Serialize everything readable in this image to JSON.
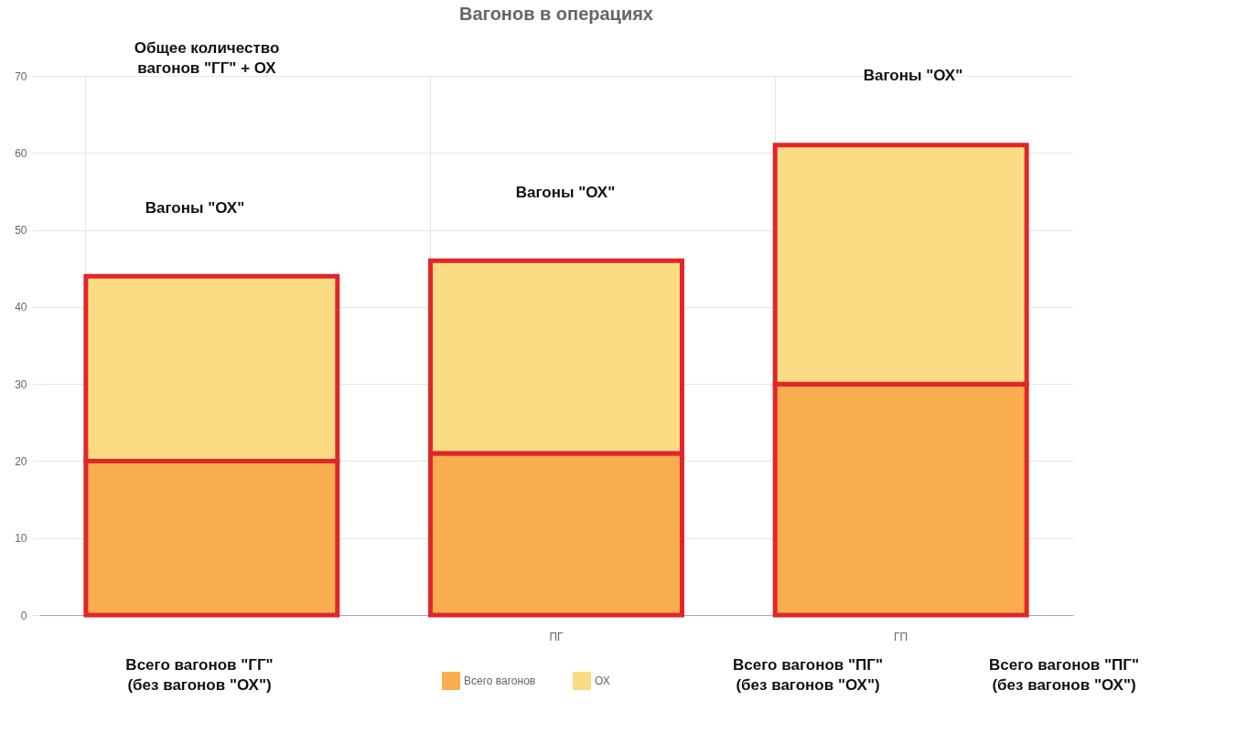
{
  "chart_data": {
    "type": "bar",
    "title": "Вагонов в операциях",
    "categories": [
      null,
      "ПГ",
      "ГП"
    ],
    "stacked": true,
    "series": [
      {
        "name": "Всего вагонов",
        "color": "#f9ad4e",
        "values": [
          20,
          21,
          30
        ]
      },
      {
        "name": "ОХ",
        "color": "#fbdc85",
        "values": [
          24,
          25,
          31
        ]
      }
    ],
    "ylim": [
      0,
      70
    ],
    "yticks": [
      0,
      10,
      20,
      30,
      40,
      50,
      60,
      70
    ],
    "grid": true,
    "legend": "bottom",
    "annotations": [
      "Общее количество\nвагонов \"ГГ\" + ОХ",
      "Вагоны \"ОХ\"",
      "Вагоны \"ОХ\"",
      "Вагоны \"ОХ\"",
      "Всего вагонов \"ГГ\"\n(без вагонов \"ОХ\")",
      "Всего вагонов \"ПГ\"\n(без вагонов \"ОХ\")",
      "Всего вагонов \"ПГ\"\n(без вагонов \"ОХ\")"
    ]
  }
}
